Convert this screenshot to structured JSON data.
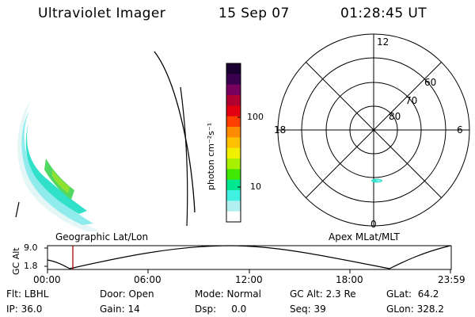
{
  "header": {
    "instrument": "Ultraviolet Imager",
    "date": "15 Sep 07",
    "time": "01:28:45 UT"
  },
  "colorbar": {
    "label": "photon cm⁻²s⁻¹",
    "ticks": [
      "100",
      "10"
    ],
    "colors": [
      "#1a0030",
      "#3a0050",
      "#7a0060",
      "#b00030",
      "#e00010",
      "#ff4000",
      "#ff8c00",
      "#ffc000",
      "#f0f000",
      "#a8f000",
      "#40e800",
      "#00e890",
      "#40f0e0",
      "#b0f0f0",
      "#ffffff"
    ]
  },
  "polar_plot": {
    "title": "Apex MLat/MLT",
    "mlt_labels": [
      "12",
      "18",
      "6",
      "0"
    ],
    "lat_labels": [
      "60",
      "70",
      "80"
    ]
  },
  "left_panel": {
    "title": "Geographic Lat/Lon"
  },
  "altitude_strip": {
    "axis_label": "GC Alt",
    "y_ticks": [
      "9.0",
      "1.8"
    ],
    "x_ticks": [
      "00:00",
      "06:00",
      "12:00",
      "18:00",
      "23:59"
    ],
    "marker_color": "#b00000"
  },
  "status": {
    "flt": "Flt: LBHL",
    "ip": "IP: 36.0",
    "door": "Door: Open",
    "gain": "Gain: 14",
    "mode": "Mode: Normal",
    "dsp": "Dsp:     0.0",
    "gcalt": "GC Alt: 2.3 Re",
    "seq": "Seq: 39",
    "glat": "GLat:  64.2",
    "glon": "GLon: 328.2"
  }
}
